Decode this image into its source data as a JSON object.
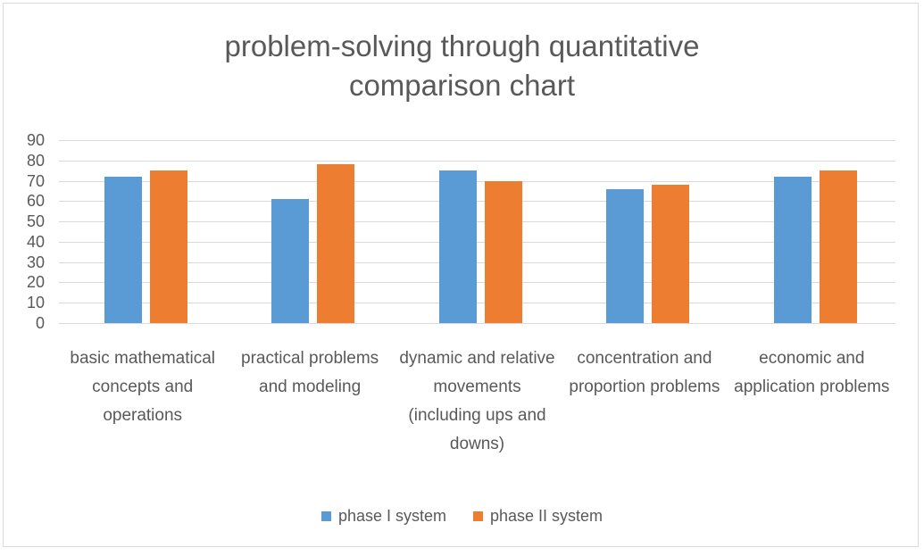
{
  "chart_data": {
    "type": "bar",
    "title": "problem-solving through quantitative comparison chart",
    "title_lines": [
      "problem-solving through quantitative",
      "comparison chart"
    ],
    "categories": [
      "basic mathematical concepts and operations",
      "practical problems and modeling",
      "dynamic and relative movements (including ups and downs)",
      "concentration and proportion problems",
      "economic and application problems"
    ],
    "series": [
      {
        "name": "phase I system",
        "color": "#5B9BD5",
        "values": [
          72,
          61,
          75,
          66,
          72
        ]
      },
      {
        "name": "phase II system",
        "color": "#ED7D31",
        "values": [
          75,
          78,
          70,
          68,
          75
        ]
      }
    ],
    "xlabel": "",
    "ylabel": "",
    "ylim": [
      0,
      90
    ],
    "yticks": [
      0,
      10,
      20,
      30,
      40,
      50,
      60,
      70,
      80,
      90
    ],
    "grid": true,
    "legend_position": "bottom"
  }
}
